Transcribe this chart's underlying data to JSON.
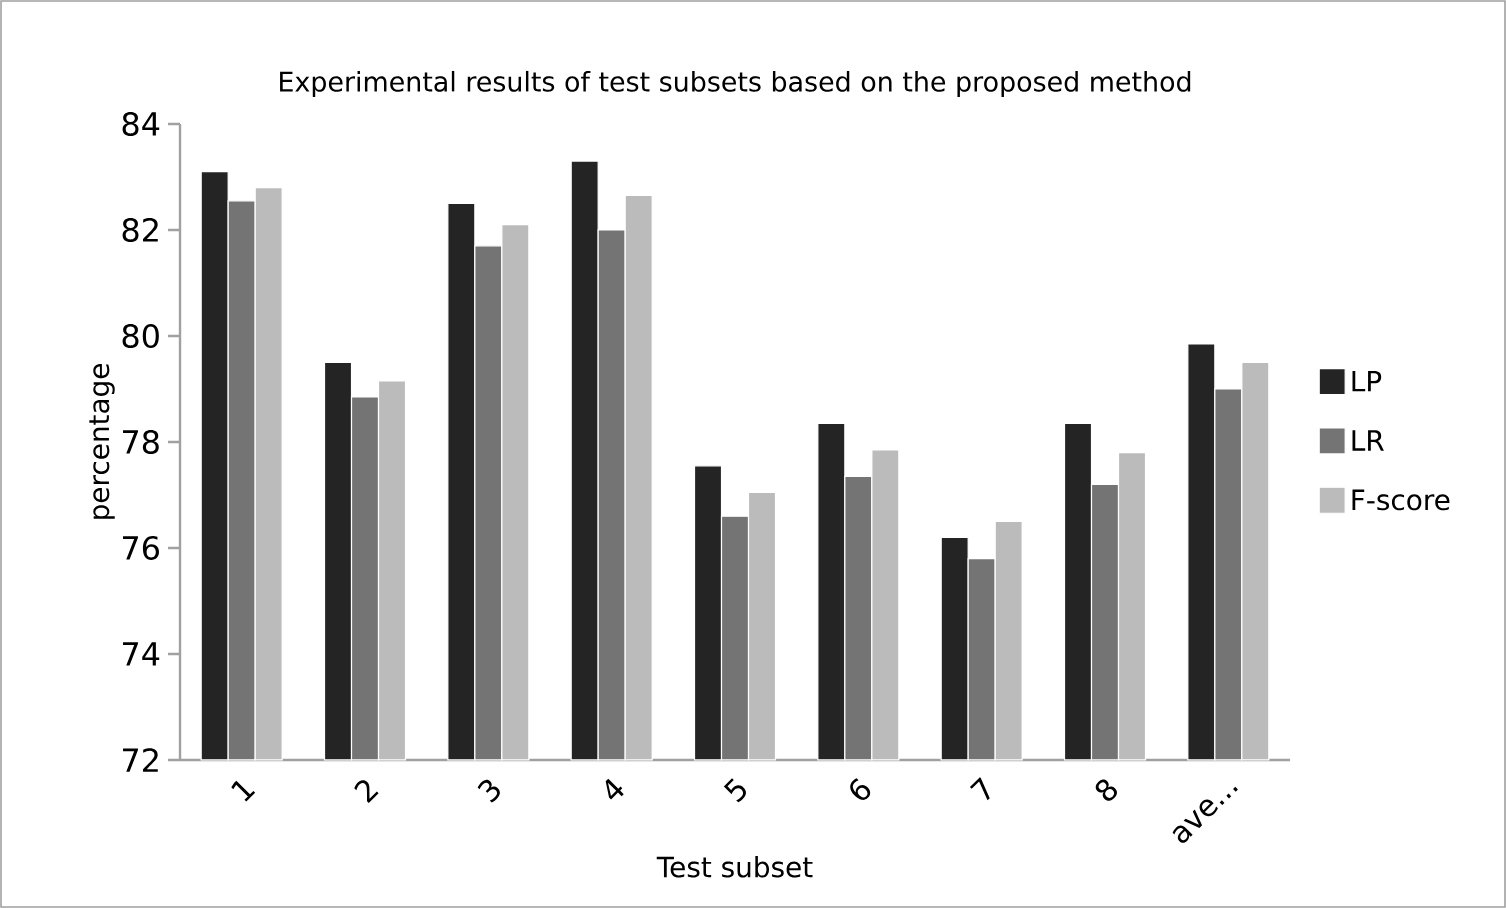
{
  "chart_data": {
    "type": "bar",
    "title": "Experimental results of test subsets based on the proposed method",
    "xlabel": "Test subset",
    "ylabel": "percentage",
    "categories": [
      "1",
      "2",
      "3",
      "4",
      "5",
      "6",
      "7",
      "8",
      "ave..."
    ],
    "series": [
      {
        "name": "LP",
        "color": "#242424",
        "values": [
          83.1,
          79.5,
          82.5,
          83.3,
          77.55,
          78.35,
          76.2,
          78.35,
          79.85
        ]
      },
      {
        "name": "LR",
        "color": "#747474",
        "values": [
          82.55,
          78.85,
          81.7,
          82.0,
          76.6,
          77.35,
          75.8,
          77.2,
          79.0
        ]
      },
      {
        "name": "F-score",
        "color": "#bbbbbb",
        "values": [
          82.8,
          79.15,
          82.1,
          82.65,
          77.05,
          77.85,
          76.5,
          77.8,
          79.5
        ]
      }
    ],
    "ylim": [
      72,
      84
    ],
    "yticks": [
      72,
      74,
      76,
      78,
      80,
      82,
      84
    ],
    "grid": false,
    "legend": "right"
  }
}
